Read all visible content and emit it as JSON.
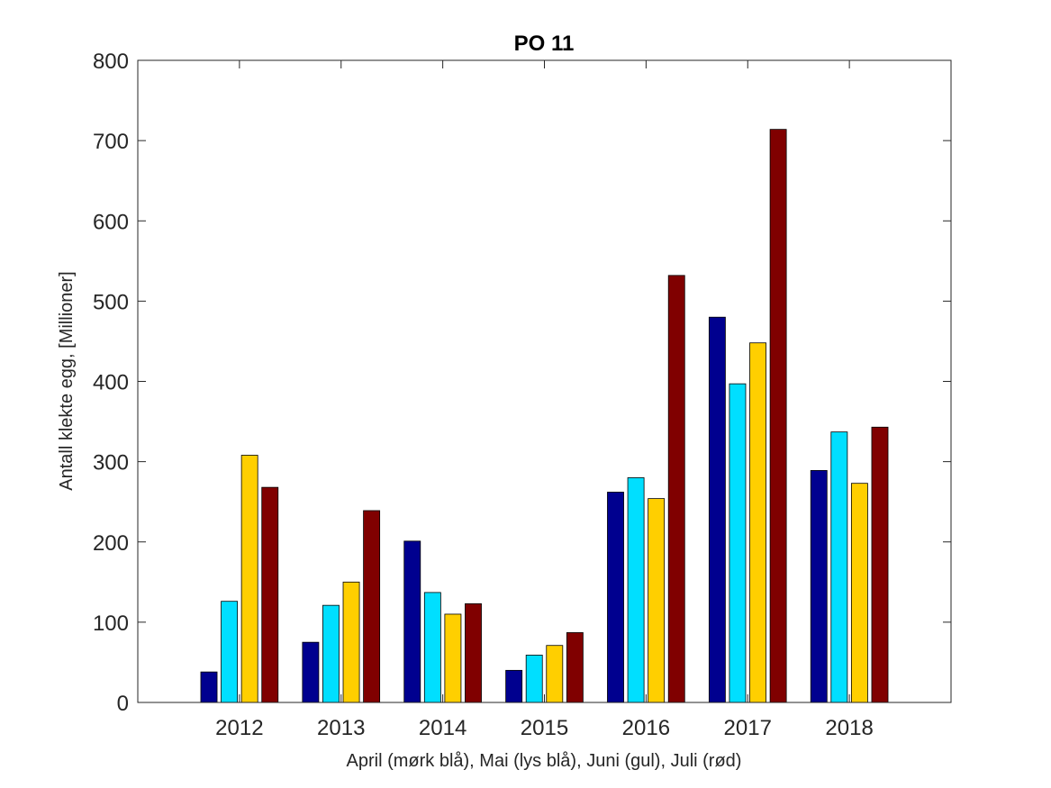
{
  "chart_data": {
    "type": "bar",
    "title": "PO 11",
    "xlabel": "April (mørk blå), Mai (lys blå), Juni (gul), Juli (rød)",
    "ylabel": "Antall klekte egg, [Millioner]",
    "categories": [
      "2012",
      "2013",
      "2014",
      "2015",
      "2016",
      "2017",
      "2018"
    ],
    "ylim": [
      0,
      800
    ],
    "yticks": [
      0,
      100,
      200,
      300,
      400,
      500,
      600,
      700,
      800
    ],
    "grid": false,
    "legend": "none",
    "series": [
      {
        "color": "#00008f",
        "values": [
          38,
          75,
          201,
          40,
          262,
          480,
          289
        ]
      },
      {
        "color": "#00dfff",
        "values": [
          126,
          121,
          137,
          59,
          280,
          397,
          337
        ]
      },
      {
        "color": "#ffcf00",
        "values": [
          308,
          150,
          110,
          71,
          254,
          448,
          273
        ]
      },
      {
        "color": "#800000",
        "values": [
          268,
          239,
          123,
          87,
          532,
          714,
          343
        ]
      }
    ]
  }
}
